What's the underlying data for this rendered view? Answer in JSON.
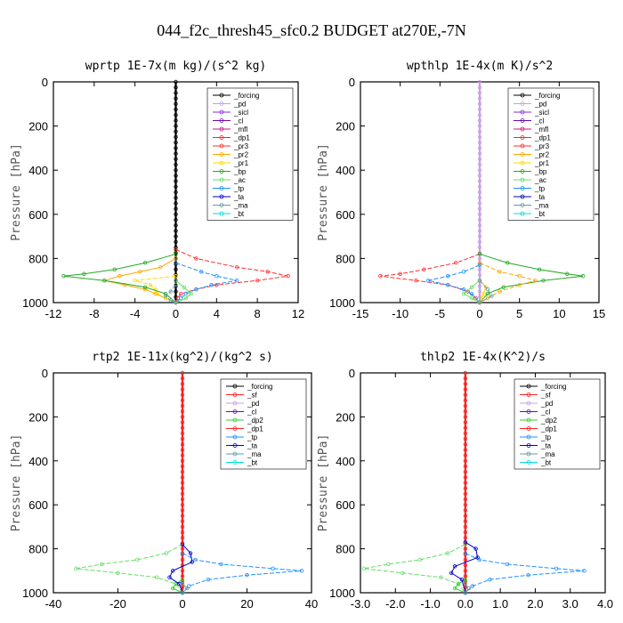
{
  "figure_title": "044_f2c_thresh45_sfc0.2  BUDGET at270E,-7N",
  "colors": {
    "forcing": "#000000",
    "pd": "#c8a0e6",
    "sicl": "#8a2be2",
    "cl": "#6a0dad",
    "mfl": "#c71585",
    "dp1": "#ff2020",
    "pr3": "#ff3030",
    "pr2": "#ffa500",
    "pr1": "#ffd700",
    "bp": "#22aa22",
    "ac": "#66dd66",
    "tp": "#1e90ff",
    "ta": "#0000cd",
    "ma": "#5f9ea0",
    "bt": "#00dddd",
    "sf": "#ff2020",
    "dp2": "#33cc33"
  },
  "chart_data": [
    {
      "type": "line",
      "title": "wprtp  1E-7x(m kg)/(s^2 kg)",
      "ylabel": "Pressure [hPa]",
      "xlim": [
        -12,
        12
      ],
      "ylim": [
        1000,
        0
      ],
      "xticks": [
        "-12",
        "-8",
        "-4",
        "0",
        "4",
        "8",
        "12"
      ],
      "yticks": [
        "0",
        "200",
        "400",
        "600",
        "800",
        "1000"
      ],
      "legend_position": "top-right",
      "legend": [
        "_forcing",
        "_pd",
        "_sicl",
        "_cl",
        "_mfl",
        "_dp1",
        "_pr3",
        "_pr2",
        "_pr1",
        "_bp",
        "_ac",
        "_tp",
        "_ta",
        "_ma",
        "_bt"
      ],
      "series": [
        {
          "name": "_forcing",
          "color_key": "forcing",
          "pressure": [
            0,
            100,
            200,
            300,
            400,
            500,
            600,
            700,
            800,
            900,
            1000
          ],
          "values": [
            0,
            0,
            0,
            0,
            0,
            0,
            0,
            0,
            0,
            0,
            0
          ]
        },
        {
          "name": "_pr3",
          "color_key": "pr3",
          "pressure": [
            760,
            800,
            840,
            860,
            880,
            900,
            920,
            940,
            960,
            980,
            1000
          ],
          "values": [
            0,
            2.0,
            6.0,
            9.0,
            11.0,
            8.0,
            4.0,
            2.0,
            0.5,
            0.2,
            0
          ]
        },
        {
          "name": "_pr2",
          "color_key": "pr2",
          "pressure": [
            800,
            840,
            860,
            880,
            900,
            920,
            940,
            960,
            980,
            1000
          ],
          "values": [
            0,
            -1.5,
            -3.5,
            -5.5,
            -7.0,
            -5.0,
            -3.0,
            -2.0,
            -1.0,
            0
          ]
        },
        {
          "name": "_pr1",
          "color_key": "pr1",
          "pressure": [
            880,
            900,
            920,
            940,
            960,
            980,
            1000
          ],
          "values": [
            0,
            -4.0,
            -2.5,
            -2.0,
            -1.8,
            -1.0,
            0
          ]
        },
        {
          "name": "_bp",
          "color_key": "bp",
          "pressure": [
            780,
            820,
            850,
            870,
            880,
            900,
            930,
            960,
            1000
          ],
          "values": [
            0,
            -3.0,
            -6.0,
            -9.0,
            -11.0,
            -7.0,
            -3.0,
            -1.0,
            0
          ]
        },
        {
          "name": "_tp",
          "color_key": "tp",
          "pressure": [
            820,
            860,
            880,
            900,
            920,
            940,
            960,
            980,
            1000
          ],
          "values": [
            0,
            2.5,
            4.0,
            6.0,
            3.5,
            2.0,
            1.0,
            0.5,
            0
          ]
        },
        {
          "name": "_ac",
          "color_key": "ac",
          "pressure": [
            900,
            930,
            960,
            980,
            1000
          ],
          "values": [
            0,
            0.8,
            1.5,
            1.0,
            0
          ]
        },
        {
          "name": "_ma",
          "color_key": "ma",
          "pressure": [
            920,
            950,
            970,
            990,
            1000
          ],
          "values": [
            0,
            -0.5,
            -1.0,
            -0.5,
            0
          ]
        }
      ]
    },
    {
      "type": "line",
      "title": "wpthlp  1E-4x(m K)/s^2",
      "ylabel": "Pressure [hPa]",
      "xlim": [
        -15,
        15
      ],
      "ylim": [
        1000,
        0
      ],
      "xticks": [
        "-15",
        "-10",
        "-5",
        "0",
        "5",
        "10",
        "15"
      ],
      "yticks": [
        "0",
        "200",
        "400",
        "600",
        "800",
        "1000"
      ],
      "legend_position": "top-right",
      "legend": [
        "_forcing",
        "_pd",
        "_sicl",
        "_cl",
        "_mfl",
        "_dp1",
        "_pr3",
        "_pr2",
        "_pr1",
        "_bp",
        "_ac",
        "_tp",
        "_ta",
        "_ma",
        "_bt"
      ],
      "series": [
        {
          "name": "_pd",
          "color_key": "pd",
          "pressure": [
            0,
            100,
            200,
            300,
            400,
            500,
            600,
            700,
            800,
            900,
            1000
          ],
          "values": [
            0,
            0,
            0,
            0,
            0,
            0,
            0,
            0,
            0,
            0,
            0
          ]
        },
        {
          "name": "_pr3",
          "color_key": "pr3",
          "pressure": [
            780,
            820,
            850,
            870,
            880,
            900,
            920,
            950,
            980,
            1000
          ],
          "values": [
            0,
            -3.0,
            -7.0,
            -10.0,
            -12.5,
            -8.0,
            -4.0,
            -1.5,
            -0.5,
            0
          ]
        },
        {
          "name": "_bp",
          "color_key": "bp",
          "pressure": [
            780,
            820,
            850,
            870,
            880,
            900,
            930,
            960,
            1000
          ],
          "values": [
            0,
            3.5,
            7.5,
            11.0,
            13.0,
            8.0,
            3.0,
            1.0,
            0
          ]
        },
        {
          "name": "_pr2",
          "color_key": "pr2",
          "pressure": [
            820,
            860,
            880,
            900,
            920,
            950,
            980,
            1000
          ],
          "values": [
            0,
            2.5,
            5.0,
            7.0,
            5.0,
            2.5,
            1.0,
            0
          ]
        },
        {
          "name": "_pr1",
          "color_key": "pr1",
          "pressure": [
            900,
            930,
            960,
            980,
            1000
          ],
          "values": [
            0,
            0.8,
            0.5,
            0.3,
            0
          ]
        },
        {
          "name": "_tp",
          "color_key": "tp",
          "pressure": [
            830,
            860,
            880,
            900,
            920,
            940,
            960,
            1000
          ],
          "values": [
            0,
            -2.0,
            -4.0,
            -6.5,
            -4.0,
            -2.0,
            -1.0,
            0
          ]
        },
        {
          "name": "_ac",
          "color_key": "ac",
          "pressure": [
            900,
            930,
            960,
            980,
            1000
          ],
          "values": [
            0,
            -1.0,
            -2.0,
            -1.0,
            0
          ]
        },
        {
          "name": "_ma",
          "color_key": "ma",
          "pressure": [
            900,
            940,
            970,
            1000
          ],
          "values": [
            0,
            1.0,
            1.5,
            0
          ]
        }
      ]
    },
    {
      "type": "line",
      "title": "rtp2  1E-11x(kg^2)/(kg^2 s)",
      "ylabel": "Pressure [hPa]",
      "xlim": [
        -40,
        40
      ],
      "ylim": [
        1000,
        0
      ],
      "xticks": [
        "-40",
        "-20",
        "0",
        "20",
        "40"
      ],
      "yticks": [
        "0",
        "200",
        "400",
        "600",
        "800",
        "1000"
      ],
      "legend_position": "top-right",
      "legend": [
        "_forcing",
        "_sf",
        "_pd",
        "_cl",
        "_dp2",
        "_dp1",
        "_tp",
        "_ta",
        "_ma",
        "_bt"
      ],
      "series": [
        {
          "name": "_forcing",
          "color_key": "sf",
          "pressure": [
            0,
            100,
            200,
            300,
            400,
            500,
            600,
            700,
            800,
            900,
            1000
          ],
          "values": [
            0,
            0,
            0,
            0,
            0,
            0,
            0,
            0,
            0,
            0,
            0
          ]
        },
        {
          "name": "_dp1",
          "color_key": "ac",
          "pressure": [
            780,
            820,
            850,
            870,
            890,
            910,
            930,
            960,
            1000
          ],
          "values": [
            0,
            -5.0,
            -14.0,
            -25.0,
            -33.0,
            -20.0,
            -8.0,
            -2.0,
            0
          ]
        },
        {
          "name": "_dp2",
          "color_key": "dp2",
          "pressure": [
            940,
            960,
            980,
            1000
          ],
          "values": [
            0,
            -2.0,
            -3.0,
            0
          ]
        },
        {
          "name": "_tp",
          "color_key": "tp",
          "pressure": [
            820,
            850,
            870,
            890,
            900,
            920,
            940,
            970,
            1000
          ],
          "values": [
            0,
            4.0,
            12.0,
            28.0,
            37.0,
            20.0,
            8.0,
            2.0,
            0
          ]
        },
        {
          "name": "_ta",
          "color_key": "ta",
          "pressure": [
            780,
            820,
            860,
            900,
            930,
            960,
            1000
          ],
          "values": [
            0,
            2.5,
            3.0,
            -3.0,
            -4.0,
            -1.0,
            0
          ]
        },
        {
          "name": "_ma",
          "color_key": "ma",
          "pressure": [
            960,
            980,
            1000
          ],
          "values": [
            0,
            1.5,
            0
          ]
        }
      ]
    },
    {
      "type": "line",
      "title": "thlp2  1E-4x(K^2)/s",
      "ylabel": "Pressure [hPa]",
      "xlim": [
        -3.0,
        4.0
      ],
      "ylim": [
        1000,
        0
      ],
      "xticks": [
        "-3.0",
        "-2.0",
        "-1.0",
        "0.0",
        "1.0",
        "2.0",
        "3.0",
        "4.0"
      ],
      "yticks": [
        "0",
        "200",
        "400",
        "600",
        "800",
        "1000"
      ],
      "legend_position": "top-right",
      "legend": [
        "_forcing",
        "_sf",
        "_pd",
        "_cl",
        "_dp2",
        "_dp1",
        "_tp",
        "_ta",
        "_ma",
        "_bt"
      ],
      "series": [
        {
          "name": "_forcing",
          "color_key": "sf",
          "pressure": [
            0,
            100,
            200,
            300,
            400,
            500,
            600,
            700,
            800,
            900,
            1000
          ],
          "values": [
            0,
            0,
            0,
            0,
            0,
            0,
            0,
            0,
            0,
            0,
            0
          ]
        },
        {
          "name": "_dp1",
          "color_key": "ac",
          "pressure": [
            780,
            820,
            850,
            870,
            890,
            910,
            930,
            960,
            1000
          ],
          "values": [
            0,
            -0.5,
            -1.3,
            -2.2,
            -2.9,
            -1.8,
            -0.7,
            -0.2,
            0
          ]
        },
        {
          "name": "_dp2",
          "color_key": "dp2",
          "pressure": [
            940,
            960,
            980,
            1000
          ],
          "values": [
            0,
            -0.2,
            -0.3,
            0
          ]
        },
        {
          "name": "_tp",
          "color_key": "tp",
          "pressure": [
            820,
            850,
            870,
            890,
            900,
            920,
            940,
            970,
            1000
          ],
          "values": [
            0,
            0.4,
            1.2,
            2.6,
            3.4,
            1.8,
            0.7,
            0.2,
            0
          ]
        },
        {
          "name": "_ta",
          "color_key": "ta",
          "pressure": [
            770,
            800,
            840,
            880,
            910,
            940,
            1000
          ],
          "values": [
            0,
            0.3,
            0.35,
            -0.3,
            -0.4,
            -0.1,
            0
          ]
        },
        {
          "name": "_ma",
          "color_key": "ma",
          "pressure": [
            960,
            980,
            1000
          ],
          "values": [
            0,
            0.1,
            0
          ]
        }
      ]
    }
  ]
}
